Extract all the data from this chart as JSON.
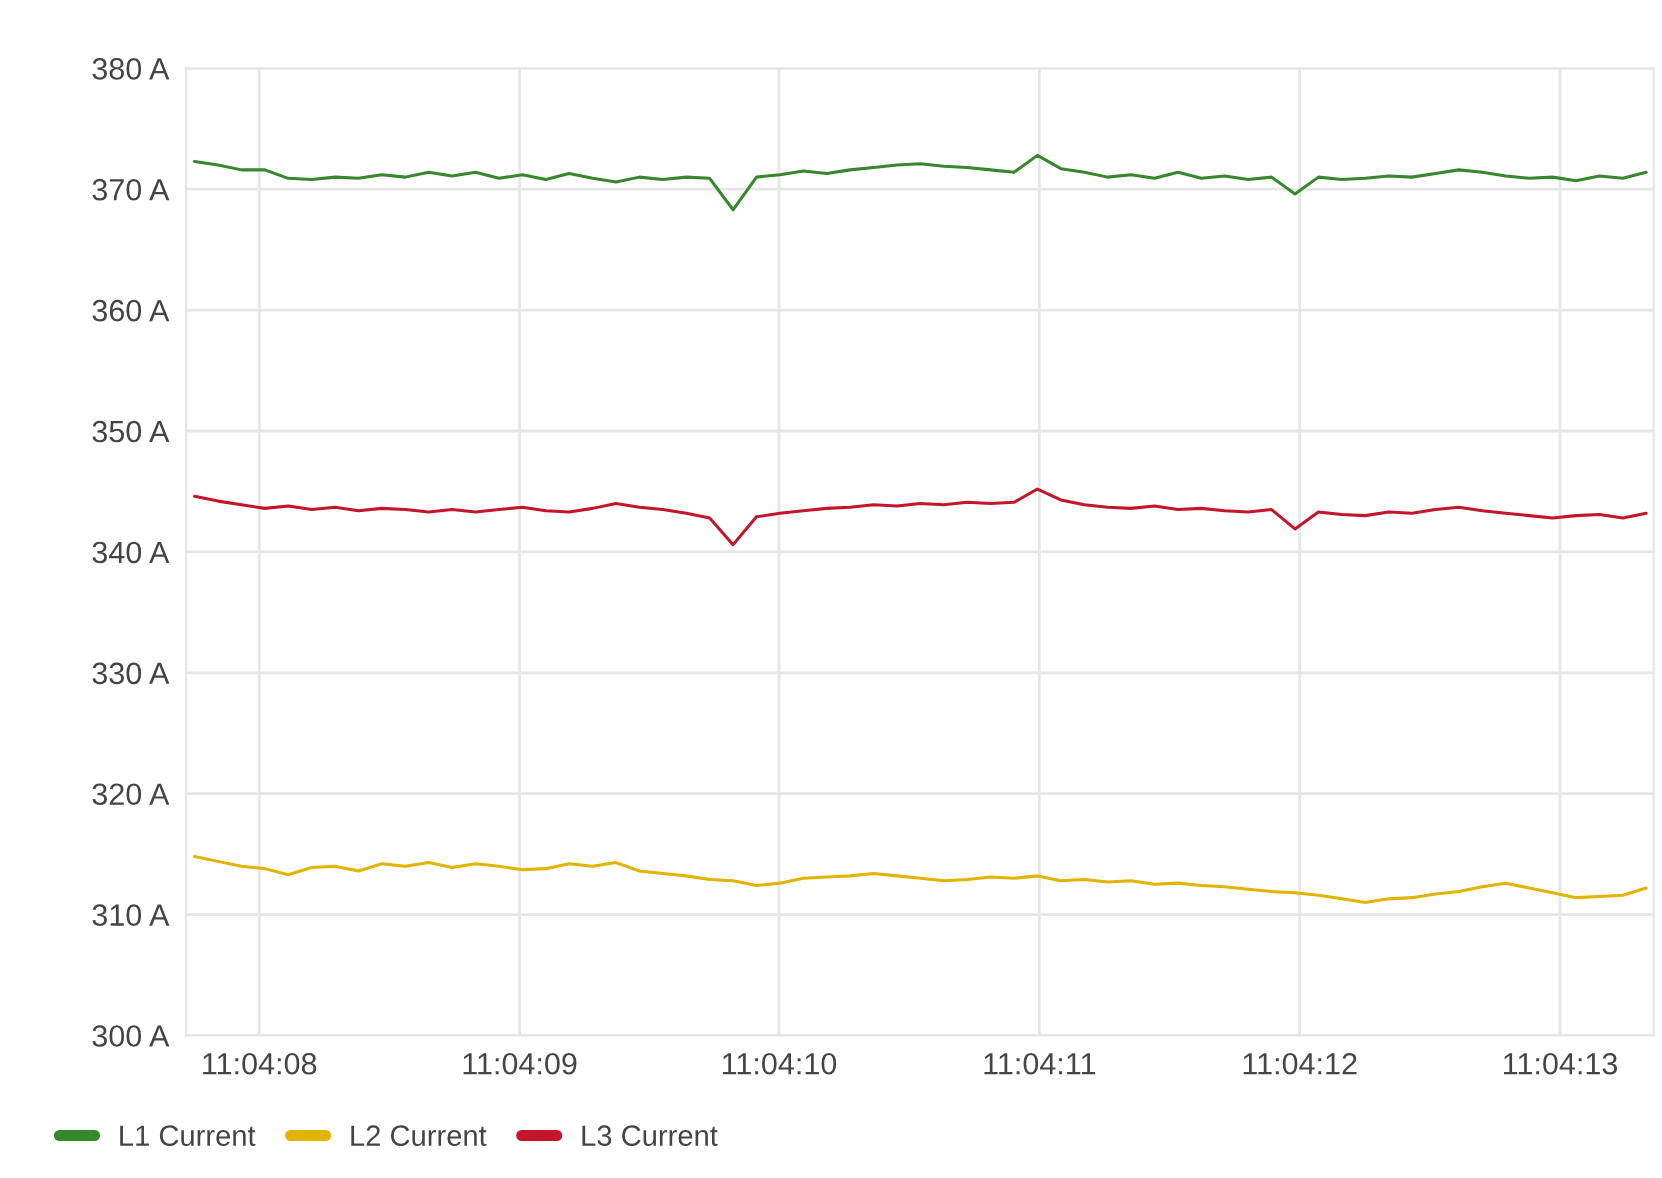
{
  "chart_data": {
    "type": "line",
    "x": [
      11.06882,
      11.068845,
      11.06887,
      11.068895,
      11.06892,
      11.068945,
      11.06897,
      11.068995,
      11.06902,
      11.069045,
      11.06907,
      11.069095,
      11.06912,
      11.069145,
      11.06917,
      11.069195,
      11.06922,
      11.069245,
      11.06927,
      11.069295,
      11.06932,
      11.069345,
      11.06937,
      11.069395,
      11.06942,
      11.069445,
      11.06947,
      11.069495,
      11.06952,
      11.069545,
      11.06957,
      11.069595,
      11.06962,
      11.069645,
      11.06967,
      11.069695,
      11.06972,
      11.069745,
      11.06977,
      11.069795,
      11.06982,
      11.069845,
      11.06987,
      11.069895,
      11.06992,
      11.069945,
      11.06997,
      11.069995,
      11.07002,
      11.070045,
      11.07007,
      11.070095,
      11.07012,
      11.070145,
      11.07017,
      11.070195,
      11.07022,
      11.070245,
      11.07027,
      11.070295,
      11.07032,
      11.070345,
      11.07037
    ],
    "series": [
      {
        "name": "L1 Current",
        "color": "#37872d",
        "values": [
          372.3,
          372.0,
          371.6,
          371.6,
          370.9,
          370.8,
          371.0,
          370.9,
          371.2,
          371.0,
          371.4,
          371.1,
          371.4,
          370.9,
          371.2,
          370.8,
          371.3,
          370.9,
          370.6,
          371.0,
          370.8,
          371.0,
          370.9,
          368.3,
          371.0,
          371.2,
          371.5,
          371.3,
          371.6,
          371.8,
          372.0,
          372.1,
          371.9,
          371.8,
          371.6,
          371.4,
          372.8,
          371.7,
          371.4,
          371.0,
          371.2,
          370.9,
          371.4,
          370.9,
          371.1,
          370.8,
          371.0,
          369.6,
          371.0,
          370.8,
          370.9,
          371.1,
          371.0,
          371.3,
          371.6,
          371.4,
          371.1,
          370.9,
          371.0,
          370.7,
          371.1,
          370.9,
          371.4
        ]
      },
      {
        "name": "L2 Current",
        "color": "#e0b400",
        "values": [
          314.8,
          314.4,
          314.0,
          313.8,
          313.3,
          313.9,
          314.0,
          313.6,
          314.2,
          314.0,
          314.3,
          313.9,
          314.2,
          314.0,
          313.7,
          313.8,
          314.2,
          314.0,
          314.3,
          313.6,
          313.4,
          313.2,
          312.9,
          312.8,
          312.4,
          312.6,
          313.0,
          313.1,
          313.2,
          313.4,
          313.2,
          313.0,
          312.8,
          312.9,
          313.1,
          313.0,
          313.2,
          312.8,
          312.9,
          312.7,
          312.8,
          312.5,
          312.6,
          312.4,
          312.3,
          312.1,
          311.9,
          311.8,
          311.6,
          311.3,
          311.0,
          311.3,
          311.4,
          311.7,
          311.9,
          312.3,
          312.6,
          312.2,
          311.8,
          311.4,
          311.5,
          311.6,
          312.2
        ]
      },
      {
        "name": "L3 Current",
        "color": "#c4162a",
        "values": [
          344.6,
          344.2,
          343.9,
          343.6,
          343.8,
          343.5,
          343.7,
          343.4,
          343.6,
          343.5,
          343.3,
          343.5,
          343.3,
          343.5,
          343.7,
          343.4,
          343.3,
          343.6,
          344.0,
          343.7,
          343.5,
          343.2,
          342.8,
          340.6,
          342.9,
          343.2,
          343.4,
          343.6,
          343.7,
          343.9,
          343.8,
          344.0,
          343.9,
          344.1,
          344.0,
          344.1,
          345.2,
          344.3,
          343.9,
          343.7,
          343.6,
          343.8,
          343.5,
          343.6,
          343.4,
          343.3,
          343.5,
          341.9,
          343.3,
          343.1,
          343.0,
          343.3,
          343.2,
          343.5,
          343.7,
          343.4,
          343.2,
          343.0,
          342.8,
          343.0,
          343.1,
          342.8,
          343.2
        ]
      }
    ],
    "xlim": [
      11.068811,
      11.070378
    ],
    "xticks": [
      {
        "value": 11.068889,
        "label": "11:04:08"
      },
      {
        "value": 11.069167,
        "label": "11:04:09"
      },
      {
        "value": 11.069444,
        "label": "11:04:10"
      },
      {
        "value": 11.069722,
        "label": "11:04:11"
      },
      {
        "value": 11.07,
        "label": "11:04:12"
      },
      {
        "value": 11.070278,
        "label": "11:04:13"
      }
    ],
    "ylim": [
      300,
      380
    ],
    "yticks": [
      {
        "value": 300,
        "label": "300 A"
      },
      {
        "value": 310,
        "label": "310 A"
      },
      {
        "value": 320,
        "label": "320 A"
      },
      {
        "value": 330,
        "label": "330 A"
      },
      {
        "value": 340,
        "label": "340 A"
      },
      {
        "value": 350,
        "label": "350 A"
      },
      {
        "value": 360,
        "label": "360 A"
      },
      {
        "value": 370,
        "label": "370 A"
      },
      {
        "value": 380,
        "label": "380 A"
      }
    ],
    "grid": true,
    "legend": "bottom left",
    "line_style": "solid"
  }
}
